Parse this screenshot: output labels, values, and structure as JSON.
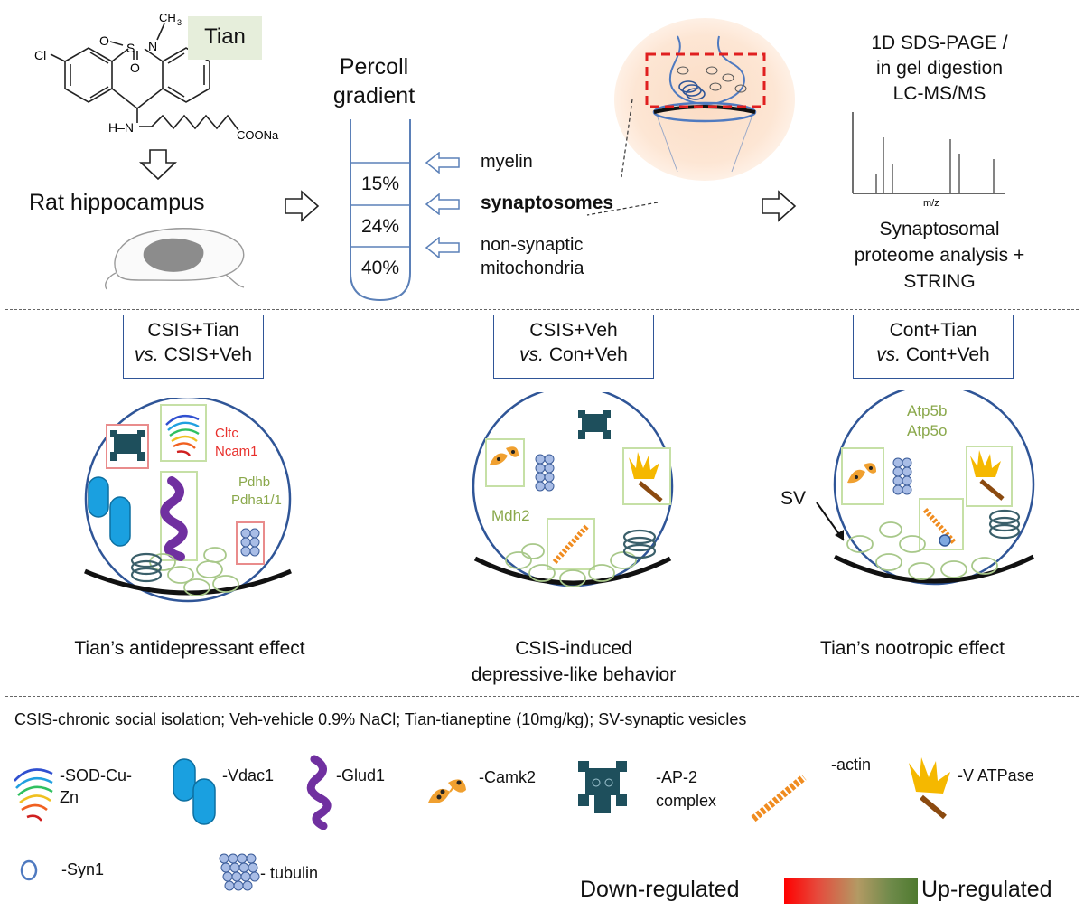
{
  "top": {
    "tian_label": "Tian",
    "chem": {
      "cl": "Cl",
      "ch3": "CH",
      "ch3_sub": "3",
      "so2_o1": "O",
      "so2_o2": "O",
      "s": "S",
      "n": "N",
      "hn": "H–N",
      "coona": "COONa"
    },
    "rat_hippocampus": "Rat hippocampus",
    "percoll_line1": "Percoll",
    "percoll_line2": "gradient",
    "gradient_layers": [
      "15%",
      "24%",
      "40%"
    ],
    "fractions": {
      "myelin": "myelin",
      "synaptosomes": "synaptosomes",
      "mito_line1": "non-synaptic",
      "mito_line2": "mitochondria"
    },
    "ms_line1": "1D SDS-PAGE  /",
    "ms_line2": "in gel digestion",
    "ms_line3": "LC-MS/MS",
    "mz_label": "m/z",
    "proteome_line1": "Synaptosomal",
    "proteome_line2": "proteome analysis +",
    "proteome_line3": "STRING"
  },
  "panels": [
    {
      "cmp_line1": "CSIS+Tian",
      "cmp_vs": "vs.",
      "cmp_line2_rest": " CSIS+Veh",
      "red_labels": [
        "Cltc",
        "Ncam1"
      ],
      "green_labels": [
        "Pdhb",
        "Pdha1/1"
      ],
      "caption": "Tian’s antidepressant effect"
    },
    {
      "cmp_line1": "CSIS+Veh",
      "cmp_vs": "vs.",
      "cmp_line2_rest": " Con+Veh",
      "green_labels": [
        "Mdh2"
      ],
      "caption_line1": "CSIS-induced",
      "caption_line2": "depressive-like behavior"
    },
    {
      "cmp_line1": "Cont+Tian",
      "cmp_vs": "vs.",
      "cmp_line2_rest": " Cont+Veh",
      "green_labels": [
        "Atp5b",
        "Atp5o"
      ],
      "sv_label": "SV",
      "caption": "Tian’s nootropic effect"
    }
  ],
  "abbreviations": "CSIS-chronic social isolation; Veh-vehicle 0.9% NaCl; Tian-tianeptine (10mg/kg); SV-synaptic vesicles",
  "legend": {
    "sod_line1": "-SOD-Cu-",
    "sod_line2": "Zn",
    "vdac1": "-Vdac1",
    "glud1": "-Glud1",
    "camk2": "-Camk2",
    "ap2_line1": "-AP-2",
    "ap2_line2": "complex",
    "actin": "-actin",
    "vatpase": "-V ATPase",
    "syn1": "-Syn1",
    "tubulin": "- tubulin"
  },
  "colorscale": {
    "low_label": "Down-regulated",
    "high_label": "Up-regulated",
    "low_color": "#ff0000",
    "high_color": "#4f7a2f"
  },
  "colors": {
    "label_red": "#e8302c",
    "label_green": "#8aa84b",
    "circle_stroke": "#2f5597",
    "ap2": "#1e4f5c",
    "vdac": "#1aa0e0",
    "glud": "#7030a0",
    "camk": "#f0a030",
    "actin": "#f08c20",
    "vatp": "#f5b800",
    "tubulin": "#a9bde6"
  }
}
